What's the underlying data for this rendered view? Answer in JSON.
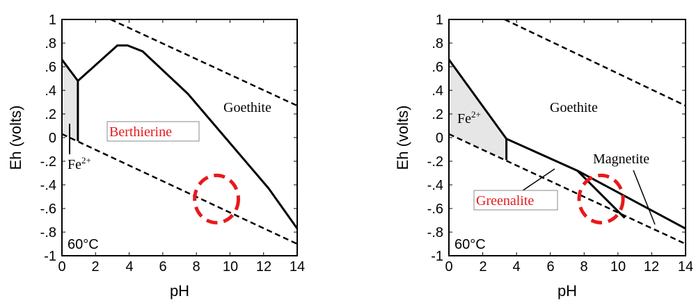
{
  "chart_data": [
    {
      "type": "line",
      "xlabel": "pH",
      "ylabel": "Eh (volts)",
      "xlim": [
        0,
        14
      ],
      "ylim": [
        -1,
        1
      ],
      "xticks": [
        "0",
        "2",
        "4",
        "6",
        "8",
        "10",
        "12",
        "14"
      ],
      "yticks": [
        "1",
        ".8",
        ".6",
        ".4",
        ".2",
        "0",
        "-.2",
        "-.4",
        "-.6",
        "-.8",
        "-1"
      ],
      "annotations": {
        "goethite": "Goethite",
        "fe": "Fe",
        "fe_sup": "2+",
        "mineral": "Berthierine",
        "temperature": "60°C"
      },
      "shaded_region": [
        [
          0,
          0.66
        ],
        [
          0.95,
          0.48
        ],
        [
          0.95,
          -0.03
        ],
        [
          0,
          0.03
        ]
      ],
      "solid_boundaries": [
        [
          [
            0,
            0.66
          ],
          [
            0.95,
            0.48
          ],
          [
            3.3,
            0.78
          ],
          [
            3.9,
            0.78
          ],
          [
            4.8,
            0.73
          ],
          [
            7.5,
            0.37
          ],
          [
            12.3,
            -0.43
          ],
          [
            14,
            -0.77
          ]
        ],
        [
          [
            0.95,
            0.48
          ],
          [
            0.95,
            -0.03
          ]
        ]
      ],
      "dashed_lines": [
        [
          [
            2.9,
            1.0
          ],
          [
            14,
            0.27
          ]
        ],
        [
          [
            0,
            0.03
          ],
          [
            14,
            -0.9
          ]
        ]
      ],
      "highlight_circle": {
        "center": [
          9.2,
          -0.52
        ],
        "rx": 1.3,
        "ry": 0.2,
        "color": "#e8191b"
      }
    },
    {
      "type": "line",
      "xlabel": "pH",
      "ylabel": "Eh (volts)",
      "xlim": [
        0,
        14
      ],
      "ylim": [
        -1,
        1
      ],
      "xticks": [
        "0",
        "2",
        "4",
        "6",
        "8",
        "10",
        "12",
        "14"
      ],
      "yticks": [
        "1",
        ".8",
        ".6",
        ".4",
        ".2",
        "0",
        "-.2",
        "-.4",
        "-.6",
        "-.8",
        "-1"
      ],
      "annotations": {
        "goethite": "Goethite",
        "fe": "Fe",
        "fe_sup": "2+",
        "magnetite": "Magnetite",
        "mineral": "Greenalite",
        "temperature": "60°C"
      },
      "shaded_region": [
        [
          0,
          0.66
        ],
        [
          3.4,
          -0.01
        ],
        [
          3.4,
          -0.19
        ],
        [
          0,
          0.03
        ]
      ],
      "solid_boundaries": [
        [
          [
            0,
            0.66
          ],
          [
            3.4,
            -0.01
          ],
          [
            7.6,
            -0.28
          ],
          [
            14,
            -0.77
          ]
        ],
        [
          [
            3.4,
            -0.01
          ],
          [
            3.4,
            -0.19
          ]
        ],
        [
          [
            7.6,
            -0.28
          ],
          [
            10.4,
            -0.68
          ]
        ]
      ],
      "dashed_lines": [
        [
          [
            3.3,
            1.0
          ],
          [
            14,
            0.27
          ]
        ],
        [
          [
            0,
            0.03
          ],
          [
            14,
            -0.9
          ]
        ]
      ],
      "highlight_circle": {
        "center": [
          9.0,
          -0.52
        ],
        "rx": 1.3,
        "ry": 0.2,
        "color": "#e8191b"
      }
    }
  ]
}
